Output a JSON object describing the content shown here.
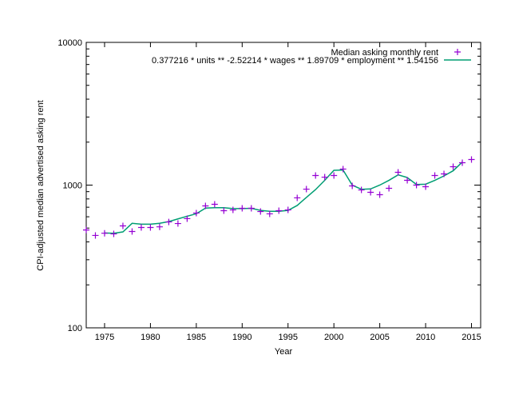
{
  "chart_data": {
    "type": "scatter",
    "xlabel": "Year",
    "ylabel": "CPI-adjusted median advertised asking rent",
    "xlim": [
      1973,
      2016
    ],
    "ylim": [
      100,
      10000
    ],
    "yscale": "log",
    "grid": false,
    "legend_placement": "top-right",
    "x_ticks": [
      "1975",
      "1980",
      "1985",
      "1990",
      "1995",
      "2000",
      "2005",
      "2010",
      "2015"
    ],
    "y_ticks": [
      "100",
      "1000",
      "10000"
    ],
    "series": [
      {
        "name": "Median asking monthly rent",
        "style": "points",
        "marker": "+",
        "color": "#9400d3",
        "x": [
          1973,
          1974,
          1975,
          1976,
          1977,
          1978,
          1979,
          1980,
          1981,
          1982,
          1983,
          1984,
          1985,
          1986,
          1987,
          1988,
          1989,
          1990,
          1991,
          1992,
          1993,
          1994,
          1995,
          1996,
          1997,
          1998,
          1999,
          2000,
          2001,
          2002,
          2003,
          2004,
          2005,
          2006,
          2007,
          2008,
          2009,
          2010,
          2011,
          2012,
          2013,
          2014,
          2015
        ],
        "y": [
          485,
          444,
          460,
          455,
          518,
          473,
          505,
          505,
          510,
          552,
          538,
          582,
          637,
          715,
          734,
          662,
          670,
          688,
          688,
          653,
          629,
          662,
          670,
          814,
          937,
          1167,
          1137,
          1167,
          1295,
          987,
          925,
          890,
          857,
          950,
          1229,
          1080,
          1000,
          975,
          1167,
          1198,
          1346,
          1435,
          1511
        ]
      },
      {
        "name": "0.377216 * units ** -2.52214 * wages ** 1.89709 * employment ** 1.54156",
        "style": "line",
        "color": "#009e73",
        "x": [
          1975,
          1976,
          1977,
          1978,
          1979,
          1980,
          1981,
          1982,
          1983,
          1984,
          1985,
          1986,
          1987,
          1988,
          1989,
          1990,
          1991,
          1992,
          1993,
          1994,
          1995,
          1996,
          1997,
          1998,
          1999,
          2000,
          2001,
          2002,
          2003,
          2004,
          2005,
          2006,
          2007,
          2008,
          2009,
          2010,
          2011,
          2012,
          2013,
          2014
        ],
        "y": [
          462,
          460,
          470,
          540,
          532,
          532,
          540,
          555,
          580,
          605,
          630,
          690,
          695,
          695,
          685,
          685,
          688,
          665,
          655,
          655,
          665,
          720,
          820,
          930,
          1080,
          1270,
          1275,
          1000,
          935,
          940,
          1000,
          1080,
          1180,
          1130,
          1010,
          1015,
          1080,
          1160,
          1260,
          1450
        ]
      }
    ]
  }
}
